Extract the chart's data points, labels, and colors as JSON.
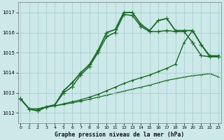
{
  "bg_color": "#cce8e8",
  "grid_color": "#aacfcf",
  "xlabel": "Graphe pression niveau de la mer (hPa)",
  "ylim": [
    1011.5,
    1017.5
  ],
  "xlim": [
    -0.3,
    23.3
  ],
  "yticks": [
    1012,
    1013,
    1014,
    1015,
    1016,
    1017
  ],
  "xticks": [
    0,
    1,
    2,
    3,
    4,
    5,
    6,
    7,
    8,
    9,
    10,
    11,
    12,
    13,
    14,
    15,
    16,
    17,
    18,
    19,
    20,
    21,
    22,
    23
  ],
  "series": [
    [
      1012.7,
      1012.2,
      1012.1,
      1012.3,
      1012.4,
      1013.1,
      1013.5,
      1014.0,
      1014.4,
      1015.1,
      1016.0,
      1016.15,
      1017.0,
      1017.0,
      1016.4,
      1016.1,
      1016.6,
      1016.7,
      1016.1,
      1016.1,
      1016.1,
      1015.4,
      1014.8,
      1014.8
    ],
    [
      1012.7,
      1012.2,
      1012.1,
      1012.3,
      1012.4,
      1013.0,
      1013.3,
      1013.9,
      1014.3,
      1015.0,
      1015.8,
      1016.0,
      1016.9,
      1016.85,
      1016.3,
      1016.05,
      1016.05,
      1016.1,
      1016.05,
      1016.05,
      1015.5,
      1014.85,
      1014.8,
      1014.8
    ],
    [
      1012.7,
      1012.2,
      1012.2,
      1012.3,
      1012.35,
      1012.45,
      1012.55,
      1012.65,
      1012.78,
      1012.92,
      1013.1,
      1013.28,
      1013.46,
      1013.62,
      1013.75,
      1013.88,
      1014.05,
      1014.22,
      1014.42,
      1015.5,
      1016.1,
      1015.4,
      1014.85,
      1014.85
    ],
    [
      1012.7,
      1012.2,
      1012.2,
      1012.3,
      1012.35,
      1012.42,
      1012.5,
      1012.58,
      1012.68,
      1012.78,
      1012.88,
      1012.98,
      1013.08,
      1013.18,
      1013.28,
      1013.38,
      1013.5,
      1013.62,
      1013.7,
      1013.78,
      1013.85,
      1013.9,
      1013.95,
      1013.8
    ]
  ],
  "colors": [
    "#1a6b2a",
    "#1a6b2a",
    "#1a6b2a",
    "#1a6b2a"
  ],
  "linewidths": [
    1.3,
    1.1,
    1.0,
    0.9
  ],
  "marker": "+",
  "marker_sizes": [
    4.5,
    4.0,
    3.5,
    3.0
  ]
}
